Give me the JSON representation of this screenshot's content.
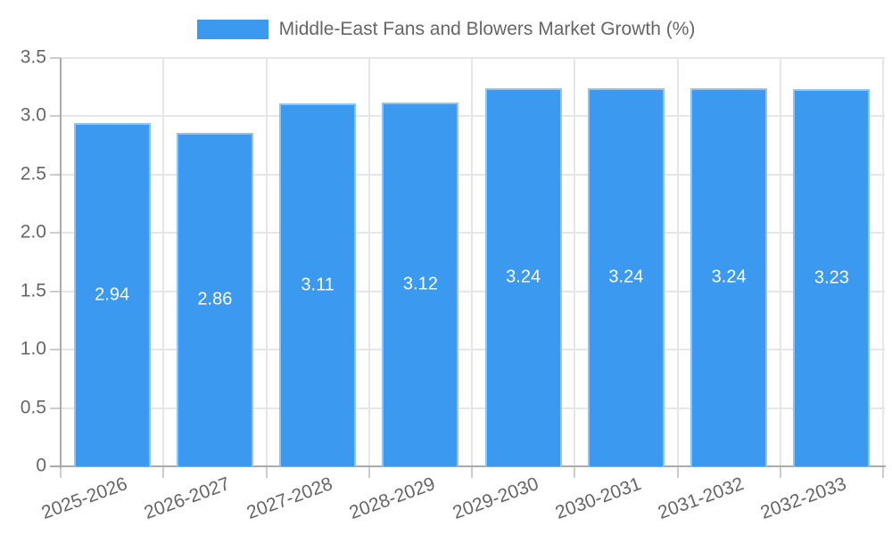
{
  "chart_data": {
    "type": "bar",
    "title": "Middle-East Fans and Blowers Market Growth (%)",
    "categories": [
      "2025-2026",
      "2026-2027",
      "2027-2028",
      "2028-2029",
      "2029-2030",
      "2030-2031",
      "2031-2032",
      "2032-2033"
    ],
    "values": [
      2.94,
      2.86,
      3.11,
      3.12,
      3.24,
      3.24,
      3.24,
      3.23
    ],
    "value_labels": [
      "2.94",
      "2.86",
      "3.11",
      "3.12",
      "3.24",
      "3.24",
      "3.24",
      "3.23"
    ],
    "xlabel": "",
    "ylabel": "",
    "ylim": [
      0,
      3.5
    ],
    "ytick_step": 0.5,
    "ytick_labels": [
      "0",
      "0.5",
      "1.0",
      "1.5",
      "2.0",
      "2.5",
      "3.0",
      "3.5"
    ],
    "grid": true,
    "legend_position": "top-center",
    "colors": {
      "bar_fill": "#3b99f0",
      "bar_border": "#8ec4f4",
      "value_label_text": "#ffffff",
      "axis_text": "#666666",
      "grid_line": "#e6e6e6",
      "tick_line": "#cccccc",
      "axis_line": "#ababab",
      "background": "#ffffff"
    }
  }
}
